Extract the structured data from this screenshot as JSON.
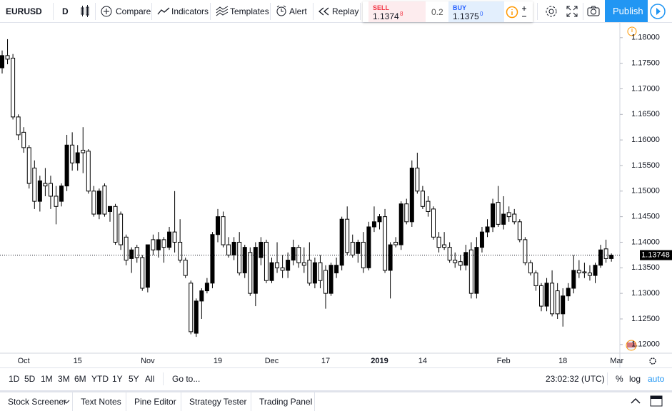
{
  "toolbar": {
    "symbol": "EURUSD",
    "interval": "D",
    "buttons": [
      "Compare",
      "Indicators",
      "Templates",
      "Alert",
      "Replay"
    ],
    "sell_label": "SELL",
    "sell_price": "1.1374",
    "sell_pip": "8",
    "spread": "0.2",
    "buy_label": "BUY",
    "buy_price": "1.1375",
    "buy_pip": "0",
    "publish": "Publish"
  },
  "chart_data": {
    "type": "candlestick",
    "categories": [
      null,
      null,
      null,
      null,
      "Oct",
      null,
      null,
      null,
      null,
      null,
      null,
      null,
      null,
      null,
      "15",
      null,
      null,
      null,
      null,
      null,
      null,
      null,
      null,
      null,
      null,
      null,
      null,
      "Nov",
      null,
      null,
      null,
      null,
      null,
      null,
      null,
      null,
      null,
      null,
      null,
      null,
      "19",
      null,
      null,
      null,
      null,
      null,
      null,
      null,
      null,
      null,
      "Dec",
      null,
      null,
      null,
      null,
      null,
      null,
      null,
      null,
      null,
      "17",
      null,
      null,
      null,
      null,
      null,
      null,
      null,
      null,
      null,
      "2019",
      null,
      null,
      null,
      null,
      null,
      null,
      null,
      "14",
      null,
      null,
      null,
      null,
      null,
      null,
      null,
      null,
      null,
      null,
      null,
      null,
      null,
      null,
      "Feb",
      null,
      null,
      null,
      null,
      null,
      null,
      null,
      null,
      null,
      null,
      "18",
      null,
      null,
      null,
      null,
      null,
      null,
      null,
      null,
      null,
      "Mar"
    ],
    "open": [
      1.1741,
      1.1765,
      1.176,
      1.1645,
      1.1615,
      1.1585,
      1.1545,
      1.148,
      1.1515,
      1.1515,
      1.149,
      1.148,
      1.151,
      1.159,
      1.1555,
      1.158,
      1.1578,
      1.15,
      1.1455,
      1.151,
      1.146,
      1.147,
      1.1455,
      1.141,
      1.1368,
      1.139,
      1.137,
      1.1312,
      1.1405,
      1.1385,
      1.1405,
      1.139,
      1.142,
      1.14,
      1.1365,
      1.132,
      1.1222,
      1.1285,
      1.1305,
      1.132,
      1.1415,
      1.145,
      1.1395,
      1.1375,
      1.14,
      1.134,
      1.138,
      1.13,
      1.137,
      1.14,
      1.1325,
      1.136,
      1.135,
      1.1345,
      1.1365,
      1.139,
      1.136,
      1.1365,
      1.132,
      1.136,
      1.1345,
      1.13,
      1.134,
      1.1355,
      1.1445,
      1.14,
      1.1378,
      1.14,
      1.135,
      1.143,
      1.144,
      1.145,
      1.1345,
      1.14,
      1.1395,
      1.1475,
      1.144,
      1.1545,
      1.15,
      1.148,
      1.1465,
      1.141,
      1.1395,
      1.139,
      1.1365,
      1.1362,
      1.1355,
      1.1385,
      1.13,
      1.139,
      1.142,
      1.143,
      1.1478,
      1.1435,
      1.1458,
      1.1455,
      1.144,
      1.1405,
      1.136,
      1.134,
      1.1315,
      1.1275,
      1.132,
      1.1305,
      1.126,
      1.1295,
      1.131,
      1.1345,
      1.1342,
      1.134,
      1.1335,
      1.1355,
      1.1387,
      1.1368,
      null
    ],
    "high": [
      1.1775,
      1.1797,
      1.1768,
      1.165,
      1.1625,
      1.159,
      1.156,
      1.153,
      1.1545,
      1.153,
      1.151,
      1.1515,
      1.161,
      1.1615,
      1.159,
      1.1625,
      1.1582,
      1.151,
      1.1505,
      1.1515,
      1.147,
      1.1475,
      1.146,
      1.1415,
      1.139,
      1.1395,
      1.1375,
      1.1395,
      1.1415,
      1.142,
      1.141,
      1.143,
      1.15,
      1.1445,
      1.137,
      1.1325,
      1.129,
      1.131,
      1.133,
      1.142,
      1.1465,
      1.146,
      1.141,
      1.141,
      1.142,
      1.1395,
      1.139,
      1.14,
      1.141,
      1.1405,
      1.137,
      1.14,
      1.1375,
      1.138,
      1.1405,
      1.1395,
      1.139,
      1.14,
      1.137,
      1.1375,
      1.1355,
      1.136,
      1.137,
      1.145,
      1.147,
      1.1415,
      1.1405,
      1.142,
      1.144,
      1.147,
      1.1455,
      1.1465,
      1.14,
      1.141,
      1.148,
      1.1485,
      1.156,
      1.1575,
      1.151,
      1.149,
      1.147,
      1.142,
      1.142,
      1.14,
      1.138,
      1.1375,
      1.1395,
      1.14,
      1.141,
      1.143,
      1.1445,
      1.1485,
      1.151,
      1.149,
      1.147,
      1.1465,
      1.1445,
      1.141,
      1.1365,
      1.1345,
      1.132,
      1.133,
      1.1345,
      1.132,
      1.131,
      1.132,
      1.1375,
      1.1365,
      1.136,
      1.1355,
      1.136,
      1.1395,
      1.1405,
      1.1378,
      null
    ],
    "low": [
      1.173,
      1.1748,
      1.164,
      1.16,
      1.1575,
      1.1505,
      1.1465,
      1.146,
      1.149,
      1.1465,
      1.1435,
      1.147,
      1.15,
      1.154,
      1.154,
      1.1535,
      1.1495,
      1.145,
      1.1445,
      1.145,
      1.144,
      1.1395,
      1.1385,
      1.1355,
      1.134,
      1.136,
      1.1305,
      1.1302,
      1.1375,
      1.137,
      1.136,
      1.1385,
      1.138,
      1.136,
      1.133,
      1.122,
      1.1215,
      1.125,
      1.13,
      1.131,
      1.14,
      1.139,
      1.137,
      1.1365,
      1.1335,
      1.133,
      1.1295,
      1.1275,
      1.1355,
      1.132,
      1.132,
      1.134,
      1.133,
      1.133,
      1.1355,
      1.135,
      1.134,
      1.1315,
      1.131,
      1.131,
      1.127,
      1.1295,
      1.133,
      1.1345,
      1.1375,
      1.137,
      1.136,
      1.134,
      1.1345,
      1.142,
      1.1425,
      1.134,
      1.129,
      1.139,
      1.1385,
      1.1435,
      1.143,
      1.1495,
      1.1465,
      1.145,
      1.1405,
      1.138,
      1.1385,
      1.136,
      1.135,
      1.1345,
      1.1345,
      1.129,
      1.129,
      1.138,
      1.141,
      1.142,
      1.143,
      1.1425,
      1.144,
      1.1435,
      1.14,
      1.1355,
      1.1335,
      1.1305,
      1.1265,
      1.1265,
      1.1255,
      1.125,
      1.1235,
      1.1285,
      1.13,
      1.133,
      1.133,
      1.1325,
      1.132,
      1.135,
      1.136,
      1.1362,
      null
    ],
    "close": [
      1.1765,
      1.1758,
      1.1645,
      1.161,
      1.1585,
      1.1515,
      1.148,
      1.152,
      1.151,
      1.149,
      1.147,
      1.151,
      1.159,
      1.1555,
      1.1575,
      1.1575,
      1.15,
      1.1455,
      1.15,
      1.1455,
      1.147,
      1.14,
      1.1395,
      1.1365,
      1.1385,
      1.137,
      1.131,
      1.1395,
      1.1385,
      1.1405,
      1.139,
      1.142,
      1.14,
      1.1365,
      1.1335,
      1.1225,
      1.1285,
      1.1305,
      1.132,
      1.1415,
      1.145,
      1.1395,
      1.1375,
      1.14,
      1.134,
      1.139,
      1.13,
      1.139,
      1.14,
      1.1325,
      1.136,
      1.135,
      1.1345,
      1.1365,
      1.139,
      1.136,
      1.1355,
      1.132,
      1.136,
      1.1325,
      1.13,
      1.1355,
      1.1355,
      1.1445,
      1.138,
      1.1375,
      1.14,
      1.135,
      1.143,
      1.144,
      1.145,
      1.1345,
      1.1395,
      1.1395,
      1.1475,
      1.144,
      1.1545,
      1.15,
      1.147,
      1.146,
      1.141,
      1.139,
      1.139,
      1.1365,
      1.136,
      1.1355,
      1.138,
      1.13,
      1.139,
      1.142,
      1.143,
      1.1475,
      1.1435,
      1.1455,
      1.145,
      1.144,
      1.1405,
      1.136,
      1.134,
      1.1315,
      1.1275,
      1.132,
      1.126,
      1.126,
      1.1295,
      1.131,
      1.1345,
      1.134,
      1.134,
      1.1335,
      1.1355,
      1.1385,
      1.1368,
      1.13748,
      null
    ],
    "up_color": "#000000",
    "down_color": "#ffffff",
    "ylim": [
      1.1183,
      1.1829
    ],
    "yticks": [
      {
        "value": 1.12,
        "label": "1.12000"
      },
      {
        "value": 1.125,
        "label": "1.12500"
      },
      {
        "value": 1.13,
        "label": "1.13000"
      },
      {
        "value": 1.135,
        "label": "1.13500"
      },
      {
        "value": 1.14,
        "label": "1.14000"
      },
      {
        "value": 1.145,
        "label": "1.14500"
      },
      {
        "value": 1.15,
        "label": "1.15000"
      },
      {
        "value": 1.155,
        "label": "1.15500"
      },
      {
        "value": 1.16,
        "label": "1.16000"
      },
      {
        "value": 1.165,
        "label": "1.16500"
      },
      {
        "value": 1.17,
        "label": "1.17000"
      },
      {
        "value": 1.175,
        "label": "1.17500"
      },
      {
        "value": 1.18,
        "label": "1.18000"
      }
    ],
    "last_price": 1.13748,
    "grid": false
  },
  "bottom_bar": {
    "ranges": [
      "1D",
      "5D",
      "1M",
      "3M",
      "6M",
      "YTD",
      "1Y",
      "5Y",
      "All"
    ],
    "goto": "Go to...",
    "clock": "23:02:32 (UTC)",
    "scale_options": [
      "%",
      "log",
      "auto"
    ]
  },
  "tabs": [
    "Stock Screener",
    "Text Notes",
    "Pine Editor",
    "Strategy Tester",
    "Trading Panel"
  ]
}
